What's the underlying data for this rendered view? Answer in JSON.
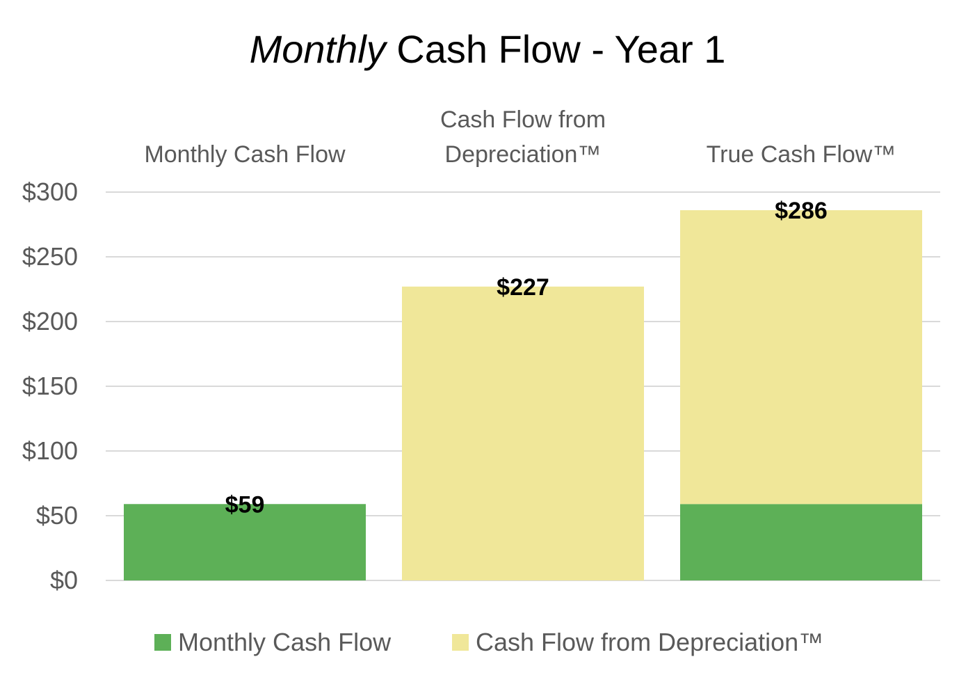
{
  "chart_data": {
    "type": "bar",
    "stacked": true,
    "title_emphasis": "Monthly",
    "title_rest": " Cash Flow - Year 1",
    "xlabel": "",
    "ylabel": "",
    "categories": [
      "Monthly Cash Flow",
      "Cash Flow from Depreciation™",
      "True Cash Flow™"
    ],
    "category_label_lines": [
      [
        "Monthly Cash Flow"
      ],
      [
        "Cash Flow from",
        "Depreciation™"
      ],
      [
        "True Cash Flow™"
      ]
    ],
    "series": [
      {
        "name": "Monthly Cash Flow",
        "color": "#5db057",
        "values": [
          59,
          0,
          59
        ]
      },
      {
        "name": "Cash Flow from Depreciation™",
        "color": "#f0e799",
        "values": [
          0,
          227,
          227
        ]
      }
    ],
    "totals": [
      59,
      227,
      286
    ],
    "data_labels": [
      "$59",
      "$227",
      "$286"
    ],
    "ylim": [
      0,
      300
    ],
    "yticks": [
      0,
      50,
      100,
      150,
      200,
      250,
      300
    ],
    "ytick_labels": [
      "$0",
      "$50",
      "$100",
      "$150",
      "$200",
      "$250",
      "$300"
    ],
    "gridlines": true,
    "gridline_color": "#d9d9d9",
    "category_axis_position": "top",
    "legend_position": "bottom"
  }
}
